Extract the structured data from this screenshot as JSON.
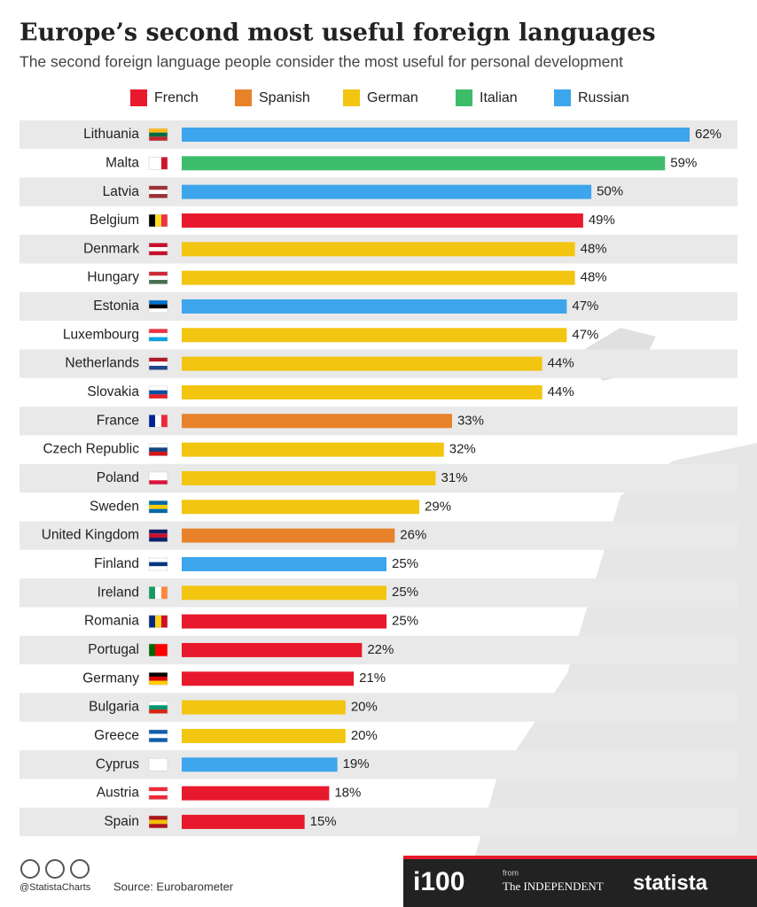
{
  "chart_data": {
    "type": "bar",
    "orientation": "horizontal",
    "title": "Europe’s second most useful foreign languages",
    "subtitle": "The second foreign language people consider the most useful for personal development",
    "categories": [
      "Lithuania",
      "Malta",
      "Latvia",
      "Belgium",
      "Denmark",
      "Hungary",
      "Estonia",
      "Luxembourg",
      "Netherlands",
      "Slovakia",
      "France",
      "Czech Republic",
      "Poland",
      "Sweden",
      "United Kingdom",
      "Finland",
      "Ireland",
      "Romania",
      "Portugal",
      "Germany",
      "Bulgaria",
      "Greece",
      "Cyprus",
      "Austria",
      "Spain"
    ],
    "series": [
      {
        "name": "French",
        "color": "#e8192c",
        "values": [
          null,
          null,
          null,
          49,
          null,
          null,
          null,
          null,
          null,
          null,
          null,
          null,
          null,
          null,
          null,
          null,
          null,
          25,
          22,
          21,
          null,
          null,
          null,
          18,
          15
        ],
        "value_labels": [
          null,
          null,
          null,
          "49%",
          null,
          null,
          null,
          null,
          null,
          null,
          null,
          null,
          null,
          null,
          null,
          null,
          null,
          "25%",
          "22%",
          "21%",
          null,
          null,
          null,
          "18%",
          "15%"
        ]
      },
      {
        "name": "Spanish",
        "color": "#e8822a",
        "values": [
          null,
          null,
          null,
          null,
          null,
          null,
          null,
          null,
          null,
          null,
          33,
          null,
          null,
          null,
          26,
          null,
          null,
          null,
          null,
          null,
          null,
          null,
          null,
          null,
          null
        ],
        "value_labels": [
          null,
          null,
          null,
          null,
          null,
          null,
          null,
          null,
          null,
          null,
          "33%",
          null,
          null,
          null,
          "26%",
          null,
          null,
          null,
          null,
          null,
          null,
          null,
          null,
          null,
          null
        ]
      },
      {
        "name": "German",
        "color": "#f2c511",
        "values": [
          null,
          null,
          null,
          null,
          48,
          48,
          null,
          47,
          44,
          44,
          null,
          32,
          31,
          29,
          null,
          null,
          25,
          null,
          null,
          null,
          20,
          20,
          null,
          null,
          null
        ],
        "value_labels": [
          null,
          null,
          null,
          null,
          "48%",
          "48%",
          null,
          "47%",
          "44%",
          "44%",
          null,
          "32%",
          "31%",
          "29%",
          null,
          null,
          "25%",
          null,
          null,
          null,
          "20%",
          "20%",
          null,
          null,
          null
        ]
      },
      {
        "name": "Italian",
        "color": "#3dbd6b",
        "values": [
          null,
          59,
          null,
          null,
          null,
          null,
          null,
          null,
          null,
          null,
          null,
          null,
          null,
          null,
          null,
          null,
          null,
          null,
          null,
          null,
          null,
          null,
          null,
          null,
          null
        ],
        "value_labels": [
          null,
          "59%",
          null,
          null,
          null,
          null,
          null,
          null,
          null,
          null,
          null,
          null,
          null,
          null,
          null,
          null,
          null,
          null,
          null,
          null,
          null,
          null,
          null,
          null,
          null
        ]
      },
      {
        "name": "Russian",
        "color": "#3da5ec",
        "values": [
          62,
          null,
          50,
          null,
          null,
          null,
          47,
          null,
          null,
          null,
          null,
          null,
          null,
          null,
          null,
          25,
          null,
          null,
          null,
          null,
          null,
          null,
          19,
          null,
          null
        ],
        "value_labels": [
          "62%",
          null,
          "50%",
          null,
          null,
          null,
          "47%",
          null,
          null,
          null,
          null,
          null,
          null,
          null,
          null,
          "25%",
          null,
          null,
          null,
          null,
          null,
          null,
          "19%",
          null,
          null
        ]
      }
    ],
    "source": "Source: Eurobarometer",
    "handle": "@StatistaCharts",
    "logos": [
      "i100",
      "from",
      "The INDEPENDENT",
      "statista"
    ]
  }
}
